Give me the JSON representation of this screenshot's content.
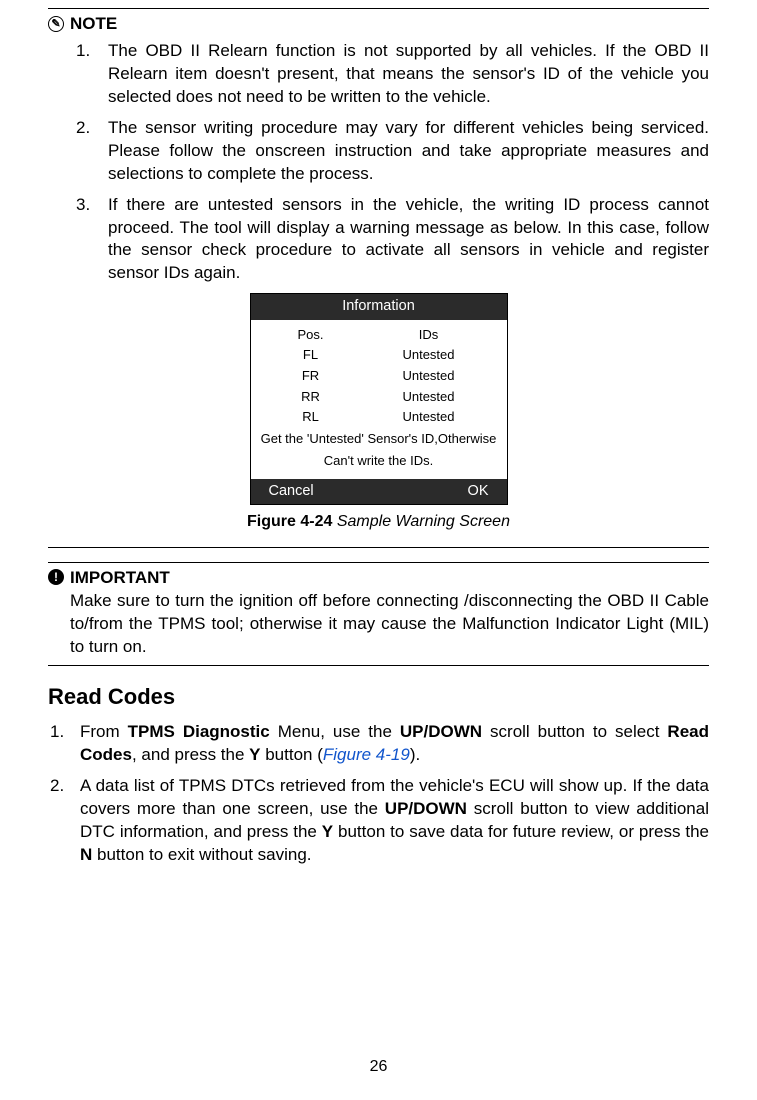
{
  "note": {
    "title": "NOTE",
    "items": [
      "The OBD II Relearn function is not supported by all vehicles. If the OBD II Relearn item doesn't present, that means the sensor's ID of the vehicle you selected does not need to be written to the vehicle.",
      "The sensor writing procedure may vary for different vehicles being serviced. Please follow the onscreen instruction and take appropriate measures and selections to complete the process.",
      "If there are untested sensors in the vehicle, the writing ID process cannot proceed. The tool will display a warning message as below. In this case, follow the sensor check procedure to activate all sensors in vehicle and register sensor IDs again."
    ]
  },
  "infoPanel": {
    "title": "Information",
    "headers": {
      "c1": "Pos.",
      "c2": "IDs"
    },
    "rows": [
      {
        "c1": "FL",
        "c2": "Untested"
      },
      {
        "c1": "FR",
        "c2": "Untested"
      },
      {
        "c1": "RR",
        "c2": "Untested"
      },
      {
        "c1": "RL",
        "c2": "Untested"
      }
    ],
    "message1": "Get the 'Untested' Sensor's ID,Otherwise",
    "message2": "Can't write the IDs.",
    "cancel": "Cancel",
    "ok": "OK"
  },
  "caption": {
    "label": "Figure 4-24",
    "title": "Sample Warning Screen"
  },
  "important": {
    "title": "IMPORTANT",
    "text": "Make sure to turn the ignition off before connecting /disconnecting the OBD II Cable to/from the TPMS tool; otherwise it may cause the Malfunction Indicator Light (MIL) to turn on."
  },
  "section": {
    "heading": "Read Codes",
    "items": [
      {
        "prefix": "From ",
        "b1": "TPMS Diagnostic",
        "mid1": " Menu, use the ",
        "b2": "UP/DOWN",
        "mid2": " scroll button to select ",
        "b3": "Read Codes",
        "mid3": ", and press the ",
        "b4": "Y",
        "mid4": " button (",
        "link": "Figure 4-19",
        "suffix": ")."
      },
      {
        "prefix": "A data list of TPMS DTCs retrieved from the vehicle's ECU will show up. If the data covers more than one screen, use the ",
        "b1": "UP/DOWN",
        "mid1": " scroll button to view additional DTC information, and press the ",
        "b2": "Y",
        "mid2": " button to save data for future review, or press the ",
        "b3": "N",
        "suffix": " button to exit without saving."
      }
    ]
  },
  "pageNumber": "26"
}
